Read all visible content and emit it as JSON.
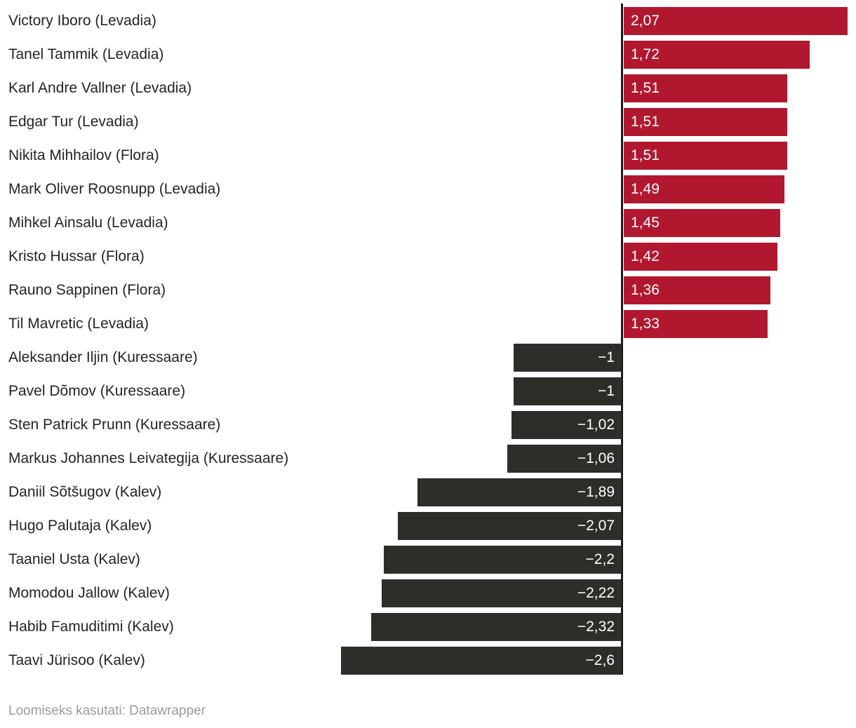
{
  "chart_data": {
    "type": "bar",
    "orientation": "horizontal",
    "title": "",
    "xlabel": "",
    "ylabel": "",
    "xlim": [
      -2.6,
      2.07
    ],
    "grid": false,
    "legend": false,
    "baseline": 0,
    "positive_color": "#b1182f",
    "negative_color": "#2e2d29",
    "axis_line_color": "#1a1a1a",
    "label_color": "#242424",
    "value_text_color": "#ffffff",
    "categories": [
      "Victory Iboro (Levadia)",
      "Tanel Tammik (Levadia)",
      "Karl Andre Vallner (Levadia)",
      "Edgar Tur (Levadia)",
      "Nikita Mihhailov (Flora)",
      "Mark Oliver Roosnupp (Levadia)",
      "Mihkel Ainsalu (Levadia)",
      "Kristo Hussar (Flora)",
      "Rauno Sappinen (Flora)",
      "Til Mavretic (Levadia)",
      "Aleksander Iljin (Kuressaare)",
      "Pavel Dõmov (Kuressaare)",
      "Sten Patrick Prunn (Kuressaare)",
      "Markus Johannes Leivategija (Kuressaare)",
      "Daniil Sõtšugov (Kalev)",
      "Hugo Palutaja (Kalev)",
      "Taaniel Usta (Kalev)",
      "Momodou Jallow (Kalev)",
      "Habib Famuditimi (Kalev)",
      "Taavi Jürisoo (Kalev)"
    ],
    "values": [
      2.07,
      1.72,
      1.51,
      1.51,
      1.51,
      1.49,
      1.45,
      1.42,
      1.36,
      1.33,
      -1,
      -1,
      -1.02,
      -1.06,
      -1.89,
      -2.07,
      -2.2,
      -2.22,
      -2.32,
      -2.6
    ],
    "value_labels": [
      "2,07",
      "1,72",
      "1,51",
      "1,51",
      "1,51",
      "1,49",
      "1,45",
      "1,42",
      "1,36",
      "1,33",
      "−1",
      "−1",
      "−1,02",
      "−1,06",
      "−1,89",
      "−2,07",
      "−2,2",
      "−2,22",
      "−2,32",
      "−2,6"
    ]
  },
  "footer": {
    "text": "Loomiseks kasutati: Datawrapper",
    "color": "#9b9b9b"
  }
}
